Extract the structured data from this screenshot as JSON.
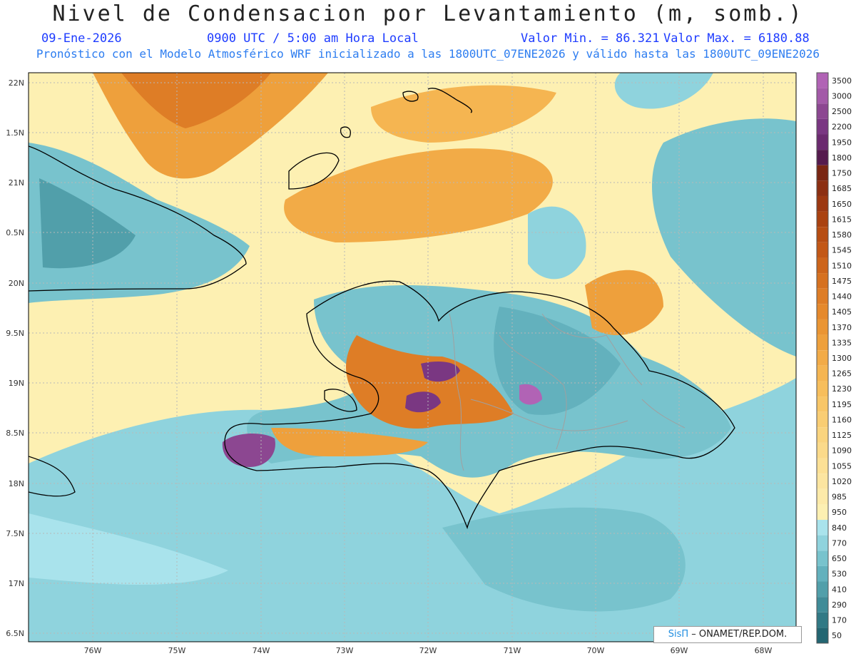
{
  "header": {
    "title": "Nivel de Condensacion por Levantamiento (m, somb.)",
    "date": "09-Ene-2026",
    "time": "0900 UTC / 5:00 am Hora Local",
    "min_label": "Valor Min. = 86.321",
    "max_label": "Valor Max. = 6180.88",
    "model_line": "Pronóstico con el Modelo Atmosférico WRF inicializado a las 1800UTC_07ENE2026 y válido hasta las  1800UTC_09ENE2026"
  },
  "axes": {
    "lat_labels": [
      "22N",
      "1.5N",
      "21N",
      "0.5N",
      "20N",
      "9.5N",
      "19N",
      "8.5N",
      "18N",
      "7.5N",
      "17N",
      "6.5N"
    ],
    "lon_labels": [
      "76W",
      "75W",
      "74W",
      "73W",
      "72W",
      "71W",
      "70W",
      "69W",
      "68W"
    ]
  },
  "legend": {
    "levels": [
      "3500",
      "3000",
      "2500",
      "2200",
      "1950",
      "1800",
      "1750",
      "1685",
      "1650",
      "1615",
      "1580",
      "1545",
      "1510",
      "1475",
      "1440",
      "1405",
      "1370",
      "1335",
      "1300",
      "1265",
      "1230",
      "1195",
      "1160",
      "1125",
      "1090",
      "1055",
      "1020",
      "985",
      "950",
      "840",
      "770",
      "650",
      "530",
      "410",
      "290",
      "170",
      "50"
    ],
    "colors": [
      "#b163b5",
      "#a35aa8",
      "#8c4791",
      "#7a3782",
      "#6b2a6f",
      "#551b4e",
      "#7a2613",
      "#8c2f12",
      "#9c3811",
      "#aa4210",
      "#b74d12",
      "#c35816",
      "#cd651b",
      "#d67120",
      "#de7d26",
      "#e5892c",
      "#ea9533",
      "#eea03c",
      "#f2ab47",
      "#f5b551",
      "#f7be5c",
      "#f8c667",
      "#f9cd73",
      "#fad47e",
      "#fbda8a",
      "#fce095",
      "#fce5a0",
      "#fdeaa9",
      "#fdf0b2",
      "#a9e3ec",
      "#8fd3dd",
      "#78c3cd",
      "#63b1bd",
      "#519faa",
      "#408c98",
      "#317985",
      "#236672"
    ]
  },
  "credit": {
    "brand": "SisΠ",
    "org": "– ONAMET/REP.DOM."
  },
  "colors": {
    "low": "#78c3cd",
    "mid": "#fdf0b2",
    "high": "#de7d26",
    "peak": "#7a3782"
  }
}
